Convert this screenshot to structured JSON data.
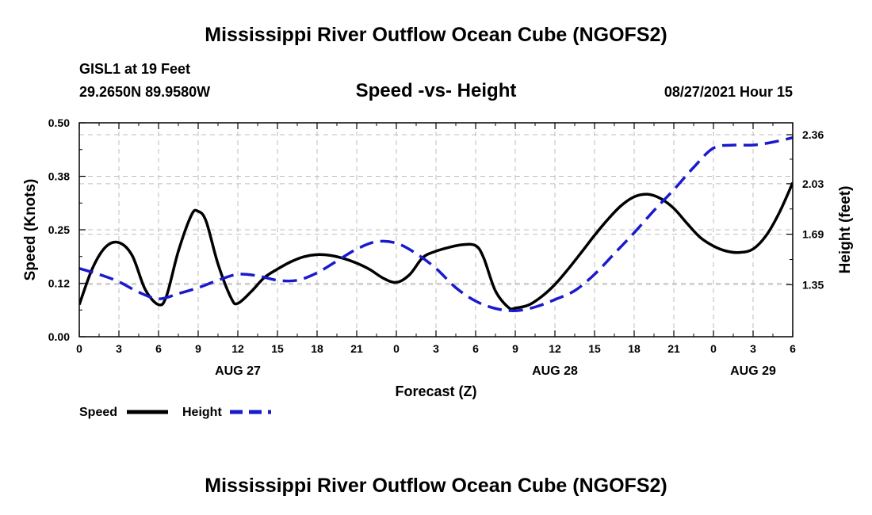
{
  "header": {
    "title": "Mississippi River Outflow Ocean Cube (NGOFS2)",
    "station": "GISL1 at 19 Feet",
    "coords": "29.2650N  89.9580W",
    "timestamp": "08/27/2021 Hour 15"
  },
  "footer": {
    "title": "Mississippi River Outflow Ocean Cube (NGOFS2)"
  },
  "colors": {
    "speed": "#000000",
    "height": "#1a1acc",
    "grid": "#bdbdbd"
  },
  "chart_data": {
    "type": "line",
    "title": "Speed -vs- Height",
    "xlabel": "Forecast (Z)",
    "ylabel": "Speed (Knots)",
    "y2label": "Height (feet)",
    "x_range": [
      0,
      54
    ],
    "ylim": [
      0,
      0.5
    ],
    "y2lim": [
      1.0,
      2.44
    ],
    "x_ticks": [
      {
        "x": 0,
        "label": "0"
      },
      {
        "x": 3,
        "label": "3"
      },
      {
        "x": 6,
        "label": "6"
      },
      {
        "x": 9,
        "label": "9"
      },
      {
        "x": 12,
        "label": "12"
      },
      {
        "x": 15,
        "label": "15"
      },
      {
        "x": 18,
        "label": "18"
      },
      {
        "x": 21,
        "label": "21"
      },
      {
        "x": 24,
        "label": "0"
      },
      {
        "x": 27,
        "label": "3"
      },
      {
        "x": 30,
        "label": "6"
      },
      {
        "x": 33,
        "label": "9"
      },
      {
        "x": 36,
        "label": "12"
      },
      {
        "x": 39,
        "label": "15"
      },
      {
        "x": 42,
        "label": "18"
      },
      {
        "x": 45,
        "label": "21"
      },
      {
        "x": 48,
        "label": "0"
      },
      {
        "x": 51,
        "label": "3"
      },
      {
        "x": 54,
        "label": "6"
      }
    ],
    "date_labels": [
      {
        "x": 12,
        "label": "AUG 27"
      },
      {
        "x": 36,
        "label": "AUG 28"
      },
      {
        "x": 51,
        "label": "AUG 29"
      }
    ],
    "y_ticks": [
      {
        "v": 0.0,
        "label": "0.00"
      },
      {
        "v": 0.125,
        "label": "0.12"
      },
      {
        "v": 0.25,
        "label": "0.25"
      },
      {
        "v": 0.375,
        "label": "0.38"
      },
      {
        "v": 0.5,
        "label": "0.50"
      }
    ],
    "y2_ticks": [
      {
        "v": 1.35,
        "label": "1.35"
      },
      {
        "v": 1.69,
        "label": "1.69"
      },
      {
        "v": 2.03,
        "label": "2.03"
      },
      {
        "v": 2.36,
        "label": "2.36"
      }
    ],
    "series": [
      {
        "name": "Speed",
        "axis": "left",
        "style": "solid",
        "x": [
          0,
          1,
          2,
          3,
          4,
          5,
          6,
          6.6,
          7.5,
          8.5,
          9,
          9.6,
          10.5,
          11.5,
          12,
          13,
          14,
          15,
          16,
          17,
          18,
          19,
          20,
          21,
          22,
          23,
          24,
          25,
          26,
          27,
          28,
          29,
          30,
          30.6,
          31.5,
          32.5,
          33,
          34,
          35,
          36,
          37,
          38,
          39,
          40,
          41,
          42,
          43,
          44,
          45,
          46,
          47,
          48,
          49,
          50,
          51,
          52,
          53,
          54
        ],
        "values": [
          0.075,
          0.16,
          0.21,
          0.22,
          0.19,
          0.11,
          0.075,
          0.095,
          0.2,
          0.285,
          0.293,
          0.27,
          0.17,
          0.09,
          0.078,
          0.105,
          0.138,
          0.158,
          0.175,
          0.187,
          0.192,
          0.19,
          0.183,
          0.172,
          0.157,
          0.137,
          0.127,
          0.145,
          0.185,
          0.2,
          0.209,
          0.215,
          0.213,
          0.185,
          0.107,
          0.068,
          0.067,
          0.074,
          0.094,
          0.122,
          0.158,
          0.197,
          0.237,
          0.274,
          0.306,
          0.327,
          0.333,
          0.323,
          0.3,
          0.265,
          0.232,
          0.212,
          0.2,
          0.197,
          0.205,
          0.237,
          0.291,
          0.36
        ]
      },
      {
        "name": "Height",
        "axis": "right",
        "style": "dashed",
        "x": [
          0,
          1.5,
          3,
          4.5,
          6,
          7.5,
          9,
          10.5,
          12,
          13.5,
          15,
          16.5,
          18,
          19.5,
          21,
          22.5,
          24,
          25.5,
          27,
          28.5,
          30,
          31.5,
          33,
          34.5,
          36,
          37.5,
          39,
          40.5,
          42,
          43.5,
          45,
          46.5,
          48,
          49.5,
          51,
          52.5,
          54
        ],
        "values": [
          1.46,
          1.42,
          1.37,
          1.3,
          1.255,
          1.29,
          1.33,
          1.38,
          1.42,
          1.41,
          1.38,
          1.38,
          1.43,
          1.51,
          1.59,
          1.64,
          1.63,
          1.56,
          1.46,
          1.33,
          1.24,
          1.19,
          1.175,
          1.2,
          1.25,
          1.31,
          1.42,
          1.56,
          1.7,
          1.85,
          1.99,
          2.14,
          2.27,
          2.29,
          2.29,
          2.31,
          2.34
        ]
      }
    ],
    "legend": [
      {
        "name": "Speed",
        "style": "solid"
      },
      {
        "name": "Height",
        "style": "dashed"
      }
    ],
    "grid": true,
    "legend_position": "bottom-left"
  }
}
